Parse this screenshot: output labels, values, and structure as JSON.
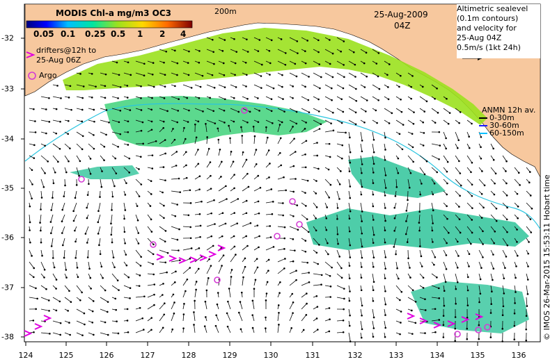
{
  "title": "25-Aug-2009",
  "time": "04Z",
  "colorbar": {
    "title": "MODIS Chl-a mg/m3 OC3",
    "ticks": [
      "0.05",
      "0.1",
      "0.25",
      "0.5",
      "1",
      "2",
      "4"
    ]
  },
  "contour_label": "200m",
  "altimetry_legend": {
    "lines": [
      "Altimetric sealevel",
      "(0.1m contours)",
      "and velocity for",
      "25-Aug 04Z"
    ],
    "scale": "0.5m/s (1kt 24h)"
  },
  "drifters_legend": [
    "drifters@12h to",
    "25-Aug 06Z"
  ],
  "argo_legend": "Argo",
  "anmn_legend": {
    "title": "ANMN 12h av.",
    "items": [
      {
        "label": "0-30m",
        "color": "#000000"
      },
      {
        "label": "30-60m",
        "color": "#1a1aff"
      },
      {
        "label": "60-150m",
        "color": "#00bfff"
      }
    ]
  },
  "credit": "© IMOS 26-Mar-2015 15:53:11 Hobart time",
  "x_ticks": [
    "124",
    "125",
    "126",
    "127",
    "128",
    "129",
    "130",
    "131",
    "132",
    "133",
    "134",
    "135",
    "136"
  ],
  "y_ticks": [
    "-32",
    "-33",
    "-34",
    "-35",
    "-36",
    "-37",
    "-38"
  ],
  "colors": {
    "land": "#f7c89e",
    "ocean": "#ffffff",
    "chl_high": "#9be11e",
    "chl_mid": "#3fd27a",
    "chl_low": "#2fc49a",
    "drifter": "#e000e0",
    "argo": "#d43bd4",
    "vector": "#000000"
  }
}
